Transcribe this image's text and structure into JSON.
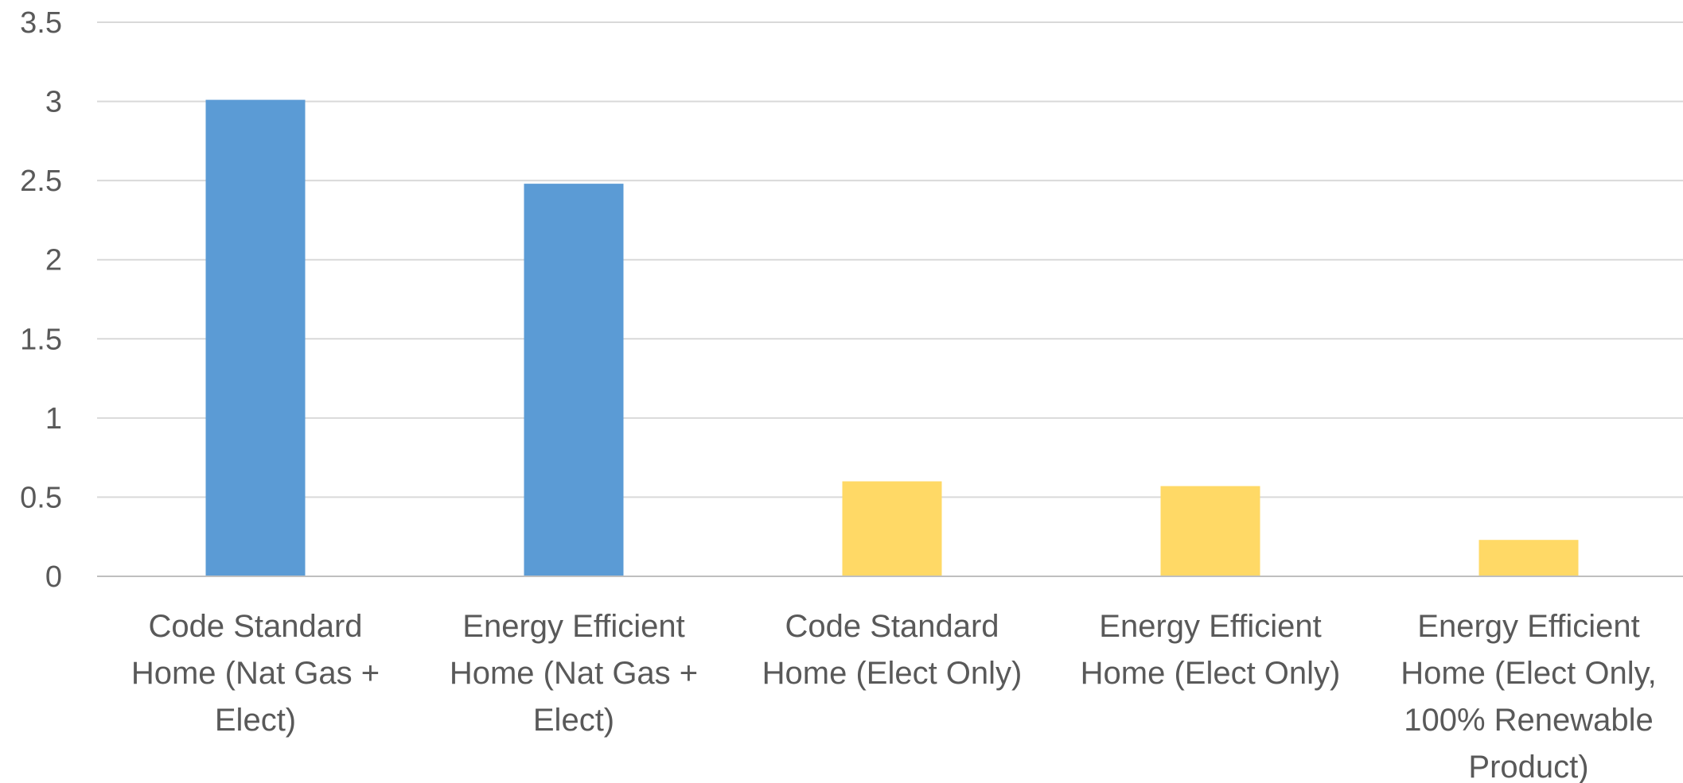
{
  "chart_data": {
    "type": "bar",
    "title": "",
    "xlabel": "",
    "ylabel": "",
    "ylim": [
      0,
      3.5
    ],
    "yticks": [
      "0",
      "0.5",
      "1",
      "1.5",
      "2",
      "2.5",
      "3",
      "3.5"
    ],
    "grid": true,
    "legend": "none",
    "categories": [
      [
        "Code Standard",
        "Home (Nat Gas +",
        "Elect)"
      ],
      [
        "Energy Efficient",
        "Home (Nat Gas +",
        "Elect)"
      ],
      [
        "Code Standard",
        "Home (Elect Only)"
      ],
      [
        "Energy Efficient",
        "Home (Elect Only)"
      ],
      [
        "Energy Efficient",
        "Home (Elect Only,",
        "100% Renewable",
        "Product)"
      ]
    ],
    "values": [
      3.01,
      2.48,
      0.6,
      0.57,
      0.23
    ],
    "bar_colors": [
      "#5b9bd5",
      "#5b9bd5",
      "#ffd966",
      "#ffd966",
      "#ffd966"
    ]
  }
}
